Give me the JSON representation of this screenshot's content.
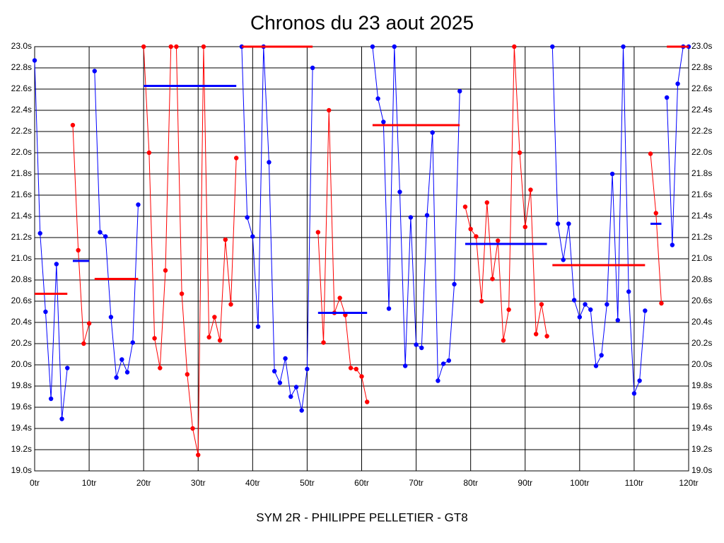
{
  "chart_data": {
    "type": "line",
    "title": "Chronos du 23 aout 2025",
    "footer": "SYM 2R - PHILIPPE PELLETIER - GT8",
    "grid": true,
    "xlim": [
      0,
      120
    ],
    "xticks": [
      {
        "value": 0,
        "label": "0tr"
      },
      {
        "value": 10,
        "label": "10tr"
      },
      {
        "value": 20,
        "label": "20tr"
      },
      {
        "value": 30,
        "label": "30tr"
      },
      {
        "value": 40,
        "label": "40tr"
      },
      {
        "value": 50,
        "label": "50tr"
      },
      {
        "value": 60,
        "label": "60tr"
      },
      {
        "value": 70,
        "label": "70tr"
      },
      {
        "value": 80,
        "label": "80tr"
      },
      {
        "value": 90,
        "label": "90tr"
      },
      {
        "value": 100,
        "label": "100tr"
      },
      {
        "value": 110,
        "label": "110tr"
      },
      {
        "value": 120,
        "label": "120tr"
      }
    ],
    "ylim": [
      19.0,
      23.0
    ],
    "yticks": [
      {
        "value": 19.0,
        "label": "19.0s"
      },
      {
        "value": 19.2,
        "label": "19.2s"
      },
      {
        "value": 19.4,
        "label": "19.4s"
      },
      {
        "value": 19.6,
        "label": "19.6s"
      },
      {
        "value": 19.8,
        "label": "19.8s"
      },
      {
        "value": 20.0,
        "label": "20.0s"
      },
      {
        "value": 20.2,
        "label": "20.2s"
      },
      {
        "value": 20.4,
        "label": "20.4s"
      },
      {
        "value": 20.6,
        "label": "20.6s"
      },
      {
        "value": 20.8,
        "label": "20.8s"
      },
      {
        "value": 21.0,
        "label": "21.0s"
      },
      {
        "value": 21.2,
        "label": "21.2s"
      },
      {
        "value": 21.4,
        "label": "21.4s"
      },
      {
        "value": 21.6,
        "label": "21.6s"
      },
      {
        "value": 21.8,
        "label": "21.8s"
      },
      {
        "value": 22.0,
        "label": "22.0s"
      },
      {
        "value": 22.2,
        "label": "22.2s"
      },
      {
        "value": 22.4,
        "label": "22.4s"
      },
      {
        "value": 22.6,
        "label": "22.6s"
      },
      {
        "value": 22.8,
        "label": "22.8s"
      },
      {
        "value": 23.0,
        "label": "23.0s"
      }
    ],
    "x": [
      0,
      1,
      2,
      3,
      4,
      5,
      6,
      7,
      8,
      9,
      10,
      11,
      12,
      13,
      14,
      15,
      16,
      17,
      18,
      19,
      20,
      21,
      22,
      23,
      24,
      25,
      26,
      27,
      28,
      29,
      30,
      31,
      32,
      33,
      34,
      35,
      36,
      37,
      38,
      39,
      40,
      41,
      42,
      43,
      44,
      45,
      46,
      47,
      48,
      49,
      50,
      51,
      52,
      53,
      54,
      55,
      56,
      57,
      58,
      59,
      60,
      61,
      62,
      63,
      64,
      65,
      66,
      67,
      68,
      69,
      70,
      71,
      72,
      73,
      74,
      75,
      76,
      77,
      78,
      79,
      80,
      81,
      82,
      83,
      84,
      85,
      86,
      87,
      88,
      89,
      90,
      91,
      92,
      93,
      94,
      95,
      96,
      97,
      98,
      99,
      100,
      101,
      102,
      103,
      104,
      105,
      106,
      107,
      108,
      109,
      110,
      111,
      112,
      113,
      114,
      115,
      116,
      117,
      118,
      119,
      120
    ],
    "series": [
      {
        "color": "#0000ff",
        "values": [
          22.87,
          21.24,
          20.5,
          19.68,
          20.95,
          19.49,
          19.97,
          null,
          null,
          null,
          null,
          22.77,
          21.25,
          21.21,
          20.45,
          19.88,
          20.05,
          19.93,
          20.21,
          21.51,
          null,
          null,
          null,
          null,
          null,
          null,
          null,
          null,
          null,
          null,
          null,
          null,
          null,
          null,
          null,
          null,
          null,
          null,
          23.0,
          21.39,
          21.21,
          20.36,
          23.0,
          21.91,
          19.94,
          19.83,
          20.06,
          19.7,
          19.79,
          19.57,
          19.96,
          22.8,
          null,
          null,
          null,
          null,
          null,
          null,
          null,
          null,
          null,
          null,
          23.0,
          22.51,
          22.29,
          20.53,
          23.0,
          21.63,
          19.99,
          21.39,
          20.19,
          20.16,
          21.41,
          22.19,
          19.85,
          20.01,
          20.04,
          20.76,
          22.58,
          null,
          null,
          null,
          null,
          null,
          null,
          null,
          null,
          null,
          null,
          null,
          null,
          null,
          null,
          null,
          null,
          23.0,
          21.33,
          20.99,
          21.33,
          20.61,
          20.45,
          20.57,
          20.52,
          19.99,
          20.09,
          20.57,
          21.8,
          20.42,
          23.0,
          20.69,
          19.73,
          19.85,
          20.51,
          null,
          null,
          null,
          22.52,
          21.13,
          22.65,
          23.0,
          23.0
        ]
      },
      {
        "color": "#ff0000",
        "values": [
          null,
          null,
          null,
          null,
          null,
          null,
          null,
          22.26,
          21.08,
          20.2,
          20.39,
          null,
          null,
          null,
          null,
          null,
          null,
          null,
          null,
          null,
          23.0,
          22.0,
          20.25,
          19.97,
          20.89,
          23.0,
          23.0,
          20.67,
          19.91,
          19.4,
          19.15,
          23.0,
          20.26,
          20.45,
          20.23,
          21.18,
          20.57,
          21.95,
          null,
          null,
          null,
          null,
          null,
          null,
          null,
          null,
          null,
          null,
          null,
          null,
          null,
          null,
          21.25,
          20.21,
          22.4,
          20.49,
          20.63,
          20.47,
          19.97,
          19.96,
          19.89,
          19.65,
          null,
          null,
          null,
          null,
          null,
          null,
          null,
          null,
          null,
          null,
          null,
          null,
          null,
          null,
          null,
          null,
          null,
          21.49,
          21.28,
          21.21,
          20.6,
          21.53,
          20.81,
          21.17,
          20.23,
          20.52,
          23.0,
          22.0,
          21.3,
          21.65,
          20.29,
          20.57,
          20.27,
          null,
          null,
          null,
          null,
          null,
          null,
          null,
          null,
          null,
          null,
          null,
          null,
          null,
          null,
          null,
          null,
          null,
          null,
          21.99,
          21.43,
          20.58,
          null,
          null,
          null,
          null,
          null
        ]
      }
    ],
    "averages": [
      {
        "x": [
          0,
          6
        ],
        "value": 20.67,
        "color": "#ff0000"
      },
      {
        "x": [
          7,
          10
        ],
        "value": 20.98,
        "color": "#0000ff"
      },
      {
        "x": [
          11,
          19
        ],
        "value": 20.81,
        "color": "#ff0000"
      },
      {
        "x": [
          20,
          37
        ],
        "value": 22.63,
        "color": "#0000ff"
      },
      {
        "x": [
          38,
          51
        ],
        "value": 23.0,
        "color": "#ff0000"
      },
      {
        "x": [
          52,
          61
        ],
        "value": 20.49,
        "color": "#0000ff"
      },
      {
        "x": [
          62,
          78
        ],
        "value": 22.26,
        "color": "#ff0000"
      },
      {
        "x": [
          79,
          94
        ],
        "value": 21.14,
        "color": "#0000ff"
      },
      {
        "x": [
          95,
          112
        ],
        "value": 20.94,
        "color": "#ff0000"
      },
      {
        "x": [
          113,
          115
        ],
        "value": 21.33,
        "color": "#0000ff"
      },
      {
        "x": [
          116,
          120
        ],
        "value": 23.0,
        "color": "#ff0000"
      }
    ]
  }
}
